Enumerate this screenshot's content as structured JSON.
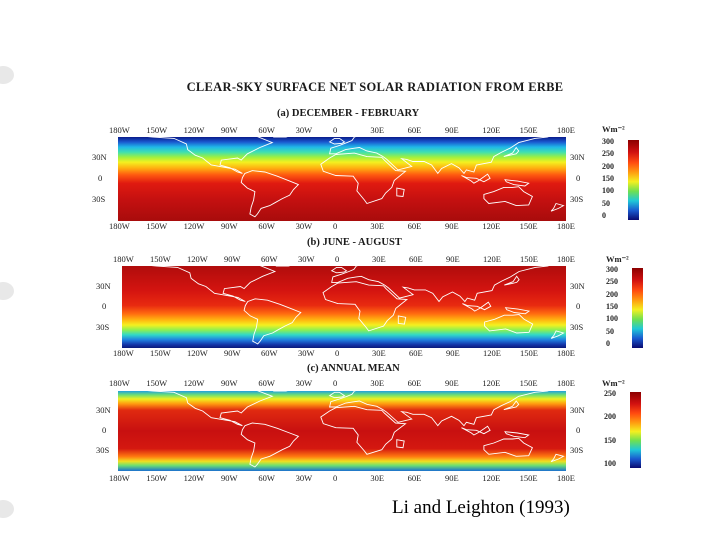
{
  "title": "CLEAR-SKY SURFACE NET SOLAR RADIATION FROM ERBE",
  "citation": "Li and Leighton (1993)",
  "panels": [
    {
      "id": "djf",
      "label": "(a) DECEMBER - FEBRUARY",
      "unit": "Wm⁻²",
      "lon_ticks": [
        "180W",
        "150W",
        "120W",
        "90W",
        "60W",
        "30W",
        "0",
        "30E",
        "60E",
        "90E",
        "120E",
        "150E",
        "180E"
      ],
      "lat_ticks": [
        "30N",
        "0",
        "30S"
      ],
      "colorbar_ticks": [
        "300",
        "250",
        "200",
        "150",
        "100",
        "50",
        "0"
      ]
    },
    {
      "id": "jja",
      "label": "(b) JUNE - AUGUST",
      "unit": "Wm⁻²",
      "lon_ticks": [
        "180W",
        "150W",
        "120W",
        "90W",
        "60W",
        "30W",
        "0",
        "30E",
        "60E",
        "90E",
        "120E",
        "150E",
        "180E"
      ],
      "lat_ticks": [
        "30N",
        "0",
        "30S"
      ],
      "colorbar_ticks": [
        "300",
        "250",
        "200",
        "150",
        "100",
        "50",
        "0"
      ]
    },
    {
      "id": "annual",
      "label": "(c) ANNUAL MEAN",
      "unit": "Wm⁻²",
      "lon_ticks": [
        "180W",
        "150W",
        "120W",
        "90W",
        "60W",
        "30W",
        "0",
        "30E",
        "60E",
        "90E",
        "120E",
        "150E",
        "180E"
      ],
      "lat_ticks": [
        "30N",
        "0",
        "30S"
      ],
      "colorbar_ticks": [
        "250",
        "200",
        "150",
        "100"
      ]
    }
  ],
  "colors": {
    "high": "#8b0000",
    "mid": "#ffff00",
    "low": "#000080",
    "coast": "#ffffff"
  }
}
